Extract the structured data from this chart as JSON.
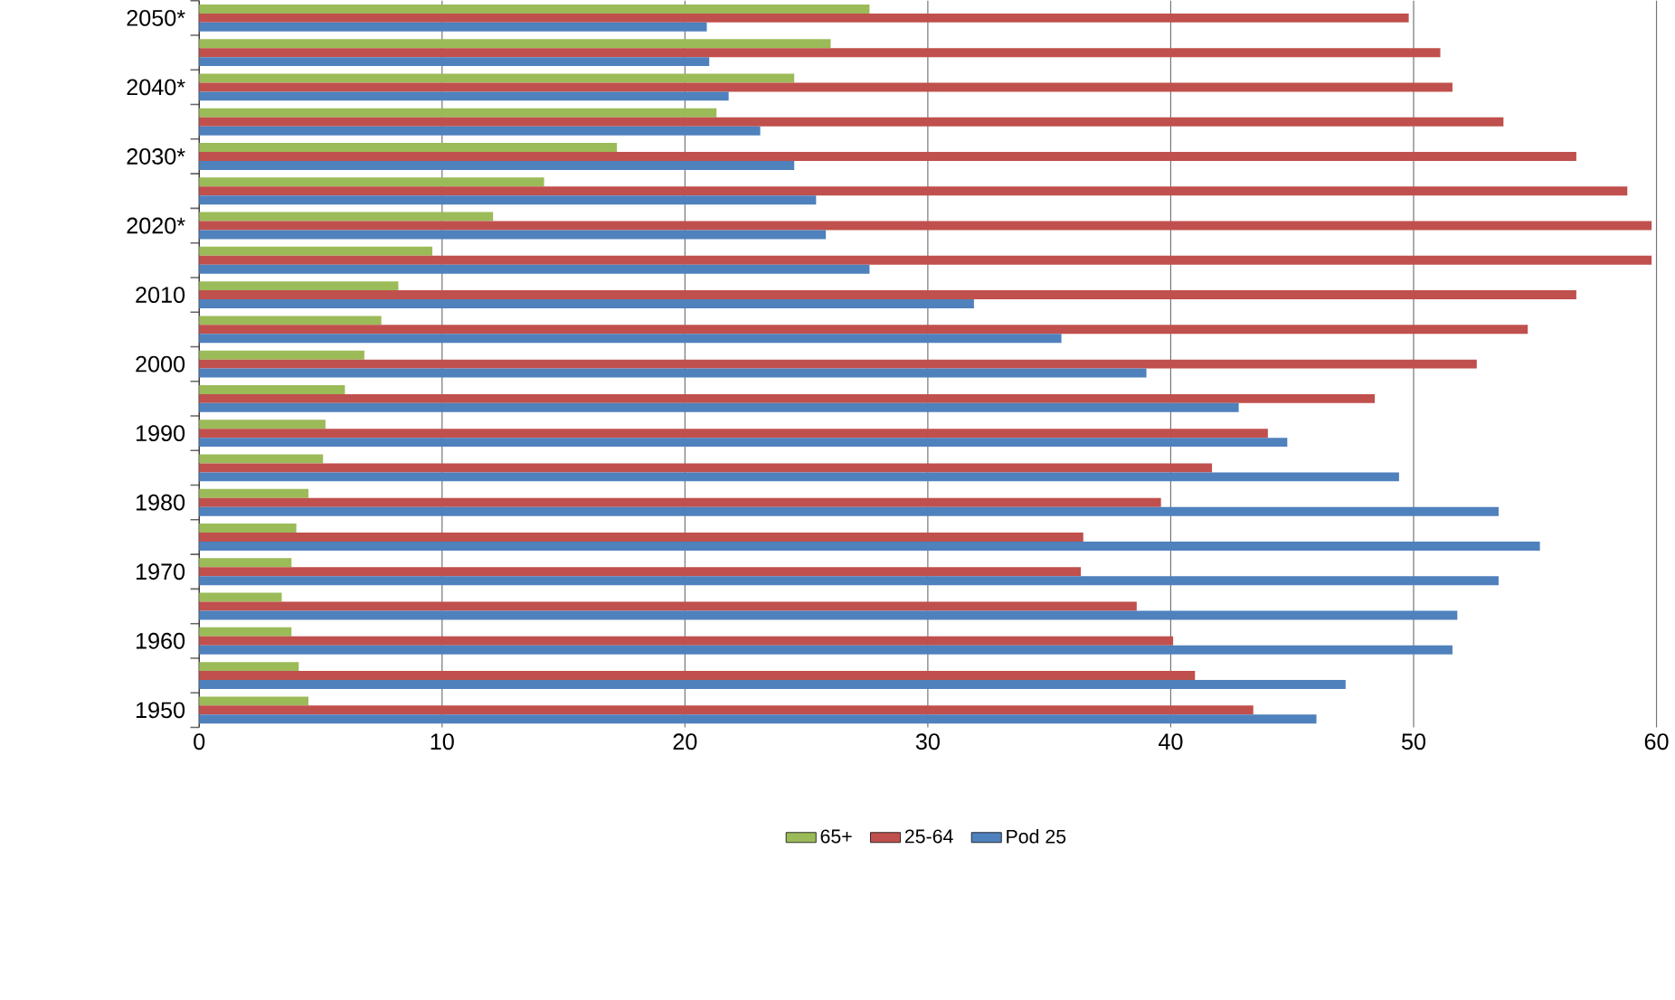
{
  "chart_data": {
    "type": "bar",
    "orientation": "horizontal",
    "categories": [
      "2050*",
      null,
      "2040*",
      null,
      "2030*",
      null,
      "2020*",
      null,
      "2010",
      null,
      "2000",
      null,
      "1990",
      null,
      "1980",
      null,
      "1970",
      null,
      "1960",
      null,
      "1950"
    ],
    "series": [
      {
        "name": "65+",
        "color": "#9bbb59",
        "values": [
          27.6,
          26.0,
          24.5,
          21.3,
          17.2,
          14.2,
          12.1,
          9.6,
          8.2,
          7.5,
          6.8,
          6.0,
          5.2,
          5.1,
          4.5,
          4.0,
          3.8,
          3.4,
          3.8,
          4.1,
          4.5
        ]
      },
      {
        "name": "25-64",
        "color": "#c0504d",
        "values": [
          49.8,
          51.1,
          51.6,
          53.7,
          56.7,
          58.8,
          59.8,
          59.8,
          56.7,
          54.7,
          52.6,
          48.4,
          44.0,
          41.7,
          39.6,
          36.4,
          36.3,
          38.6,
          40.1,
          41.0,
          43.4
        ]
      },
      {
        "name": "Pod 25",
        "color": "#4f81bd",
        "values": [
          20.9,
          21.0,
          21.8,
          23.1,
          24.5,
          25.4,
          25.8,
          27.6,
          31.9,
          35.5,
          39.0,
          42.8,
          44.8,
          49.4,
          53.5,
          55.2,
          53.5,
          51.8,
          51.6,
          47.2,
          46.0
        ]
      }
    ],
    "xlim": [
      0,
      60
    ],
    "xticks": [
      0,
      10,
      20,
      30,
      40,
      50,
      60
    ],
    "grid": "x",
    "legend": "bottom"
  }
}
